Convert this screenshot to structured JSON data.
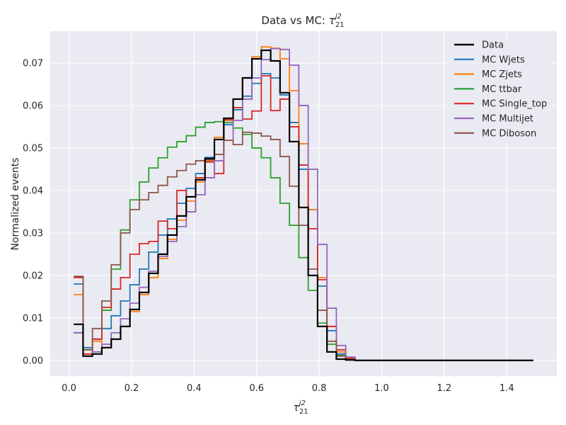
{
  "chart_data": {
    "type": "line",
    "title_prefix": "Data vs MC: ",
    "title_symbol": "τ",
    "title_sup": "j2",
    "title_sub": "21",
    "xlabel_symbol": "τ",
    "xlabel_sup": "j2",
    "xlabel_sub": "21",
    "ylabel": "Normalized events",
    "xlim": [
      -0.06,
      1.56
    ],
    "ylim": [
      -0.0037,
      0.0775
    ],
    "xticks": [
      0.0,
      0.2,
      0.4,
      0.6,
      0.8,
      1.0,
      1.2,
      1.4
    ],
    "xtick_labels": [
      "0.0",
      "0.2",
      "0.4",
      "0.6",
      "0.8",
      "1.0",
      "1.2",
      "1.4"
    ],
    "yticks": [
      0.0,
      0.01,
      0.02,
      0.03,
      0.04,
      0.05,
      0.06,
      0.07
    ],
    "ytick_labels": [
      "0.00",
      "0.01",
      "0.02",
      "0.03",
      "0.04",
      "0.05",
      "0.06",
      "0.07"
    ],
    "legend_position": "top-right",
    "grid": true,
    "bin_width": 0.03,
    "bin_start": 0.015,
    "series": [
      {
        "name": "Data",
        "color": "#000000",
        "values": [
          0.0085,
          0.001,
          0.0015,
          0.003,
          0.005,
          0.008,
          0.012,
          0.016,
          0.0205,
          0.025,
          0.0295,
          0.034,
          0.0385,
          0.0425,
          0.0475,
          0.052,
          0.057,
          0.0615,
          0.0665,
          0.071,
          0.073,
          0.0705,
          0.063,
          0.0515,
          0.036,
          0.02,
          0.008,
          0.002,
          0.0003,
          0.0001,
          0.0,
          0.0,
          0.0,
          0.0,
          0.0,
          0.0,
          0.0,
          0.0,
          0.0,
          0.0,
          0.0,
          0.0,
          0.0,
          0.0,
          0.0,
          0.0,
          0.0,
          0.0,
          0.0
        ]
      },
      {
        "name": "MC Wjets",
        "color": "#1f77b4",
        "values": [
          0.018,
          0.003,
          0.005,
          0.0075,
          0.0105,
          0.014,
          0.0178,
          0.0215,
          0.0255,
          0.0295,
          0.0333,
          0.037,
          0.0405,
          0.044,
          0.0478,
          0.052,
          0.0555,
          0.059,
          0.0622,
          0.0652,
          0.0675,
          0.0665,
          0.0625,
          0.056,
          0.045,
          0.0355,
          0.0175,
          0.007,
          0.0015,
          0.0003,
          0.0,
          0.0,
          0.0,
          0.0,
          0.0,
          0.0,
          0.0,
          0.0,
          0.0,
          0.0,
          0.0,
          0.0,
          0.0,
          0.0,
          0.0,
          0.0,
          0.0,
          0.0,
          0.0
        ]
      },
      {
        "name": "MC Zjets",
        "color": "#ff7f0e",
        "values": [
          0.0155,
          0.0015,
          0.0045,
          0.003,
          0.005,
          0.008,
          0.0115,
          0.0155,
          0.0195,
          0.024,
          0.0285,
          0.033,
          0.0375,
          0.042,
          0.047,
          0.0525,
          0.0565,
          0.0615,
          0.0665,
          0.0715,
          0.0738,
          0.0735,
          0.071,
          0.0635,
          0.051,
          0.0355,
          0.0195,
          0.008,
          0.002,
          0.0005,
          0.0,
          0.0,
          0.0,
          0.0,
          0.0,
          0.0,
          0.0,
          0.0,
          0.0,
          0.0,
          0.0,
          0.0,
          0.0,
          0.0,
          0.0,
          0.0,
          0.0,
          0.0,
          0.0
        ]
      },
      {
        "name": "MC ttbar",
        "color": "#2ca02c",
        "values": [
          0.0065,
          0.0025,
          0.005,
          0.0118,
          0.0215,
          0.0307,
          0.0378,
          0.042,
          0.0453,
          0.0477,
          0.0502,
          0.0515,
          0.0529,
          0.0549,
          0.056,
          0.0562,
          0.056,
          0.0547,
          0.0532,
          0.05,
          0.0477,
          0.043,
          0.037,
          0.0318,
          0.0242,
          0.0165,
          0.0088,
          0.0038,
          0.0012,
          0.0002,
          0.0,
          0.0,
          0.0,
          0.0,
          0.0,
          0.0,
          0.0,
          0.0,
          0.0,
          0.0,
          0.0,
          0.0,
          0.0,
          0.0,
          0.0,
          0.0,
          0.0,
          0.0,
          0.0
        ]
      },
      {
        "name": "MC Single_top",
        "color": "#d62728",
        "values": [
          0.0195,
          0.0015,
          0.005,
          0.0125,
          0.0168,
          0.0195,
          0.025,
          0.0275,
          0.028,
          0.0328,
          0.031,
          0.04,
          0.035,
          0.043,
          0.0467,
          0.044,
          0.0567,
          0.0595,
          0.0568,
          0.0587,
          0.067,
          0.0588,
          0.0615,
          0.055,
          0.046,
          0.031,
          0.019,
          0.008,
          0.0025,
          0.0005,
          0.0,
          0.0,
          0.0,
          0.0,
          0.0,
          0.0,
          0.0,
          0.0,
          0.0,
          0.0,
          0.0,
          0.0,
          0.0,
          0.0,
          0.0,
          0.0,
          0.0,
          0.0,
          0.0
        ]
      },
      {
        "name": "MC Multijet",
        "color": "#9467bd",
        "values": [
          0.0065,
          0.001,
          0.002,
          0.0038,
          0.0065,
          0.0098,
          0.0135,
          0.0172,
          0.021,
          0.0245,
          0.028,
          0.0315,
          0.035,
          0.039,
          0.043,
          0.047,
          0.0518,
          0.0565,
          0.0615,
          0.0665,
          0.0708,
          0.0734,
          0.0732,
          0.0695,
          0.06,
          0.045,
          0.0273,
          0.0123,
          0.0035,
          0.0008,
          0.0,
          0.0,
          0.0,
          0.0,
          0.0,
          0.0,
          0.0,
          0.0,
          0.0,
          0.0,
          0.0,
          0.0,
          0.0,
          0.0,
          0.0,
          0.0,
          0.0,
          0.0,
          0.0
        ]
      },
      {
        "name": "MC Diboson",
        "color": "#8c564b",
        "values": [
          0.0198,
          0.0025,
          0.0075,
          0.014,
          0.0225,
          0.03,
          0.0355,
          0.0378,
          0.0395,
          0.0412,
          0.0432,
          0.0447,
          0.0462,
          0.047,
          0.0472,
          0.0485,
          0.0518,
          0.0508,
          0.0537,
          0.0535,
          0.0528,
          0.052,
          0.048,
          0.041,
          0.0318,
          0.0215,
          0.0118,
          0.0045,
          0.001,
          0.0002,
          0.0,
          0.0,
          0.0,
          0.0,
          0.0,
          0.0,
          0.0,
          0.0,
          0.0,
          0.0,
          0.0,
          0.0,
          0.0,
          0.0,
          0.0,
          0.0,
          0.0,
          0.0,
          0.0
        ]
      }
    ]
  }
}
